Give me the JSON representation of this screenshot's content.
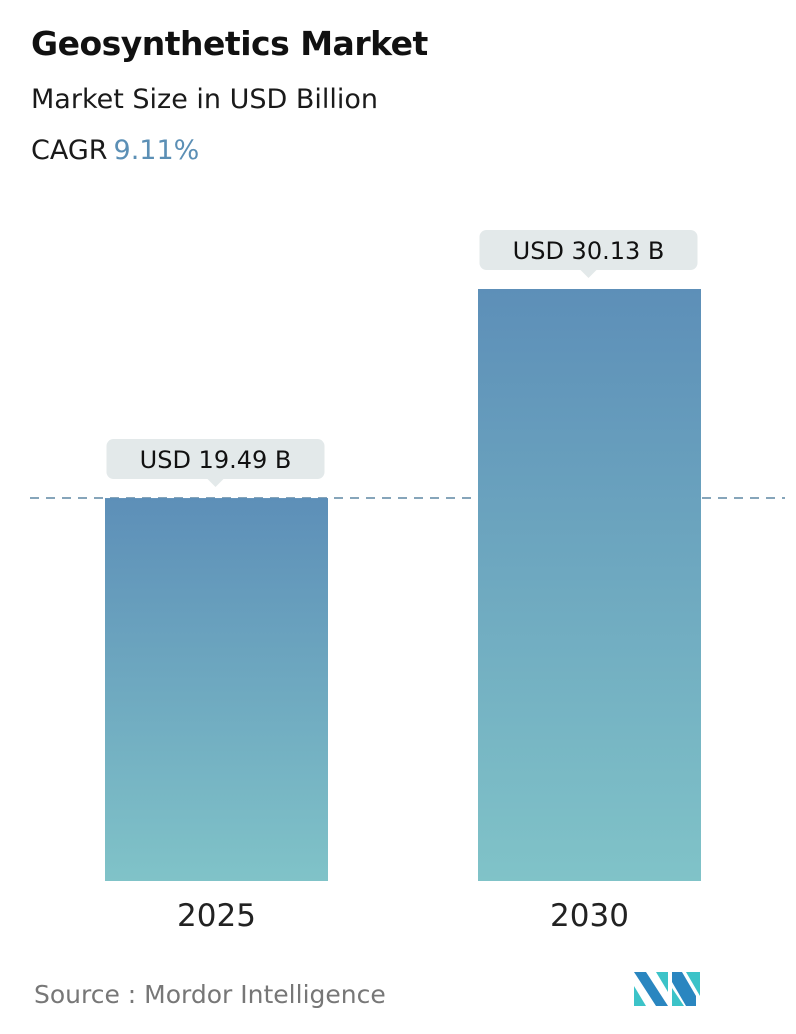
{
  "header": {
    "title": "Geosynthetics Market",
    "subtitle": "Market Size in USD Billion",
    "cagr_label": "CAGR",
    "cagr_value": "9.11%"
  },
  "chart_data": {
    "type": "bar",
    "categories": [
      "2025",
      "2030"
    ],
    "values": [
      19.49,
      30.13
    ],
    "data_labels": [
      "USD 19.49 B",
      "USD 30.13 B"
    ],
    "reference_line": {
      "value": 19.49,
      "style": "dashed"
    },
    "ylim": [
      0,
      30.13
    ],
    "grid": false,
    "colors": {
      "bar_top": "#5d8fb8",
      "bar_bottom": "#80c3c8",
      "callout": "#e3e9ea",
      "dashed_line": "#5f87a3",
      "cagr": "#5b8fb5"
    }
  },
  "footer": {
    "source": "Source :  Mordor Intelligence",
    "logo_text": "MI"
  }
}
